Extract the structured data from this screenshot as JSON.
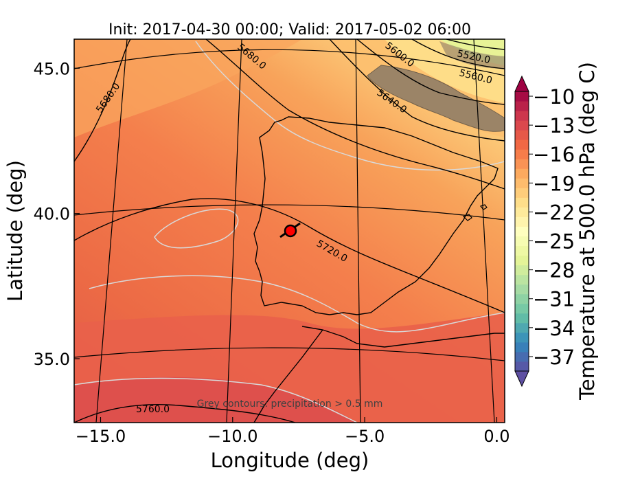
{
  "chart_data": {
    "type": "heatmap",
    "title": "Init: 2017-04-30 00:00; Valid: 2017-05-02 06:00",
    "xlabel": "Longitude (deg)",
    "ylabel": "Latitude (deg)",
    "xlim": [
      -16.0,
      0.3
    ],
    "ylim": [
      32.8,
      46.0
    ],
    "x_ticks": [
      -15.0,
      -10.0,
      -5.0,
      0.0
    ],
    "x_tick_labels": [
      "−15.0",
      "−10.0",
      "−5.0",
      "0.0"
    ],
    "y_ticks": [
      35.0,
      40.0,
      45.0
    ],
    "y_tick_labels": [
      "35.0",
      "40.0",
      "45.0"
    ],
    "colorbar": {
      "label": "Temperature at 500.0 hPa (deg C)",
      "tick_values": [
        -10,
        -13,
        -16,
        -19,
        -22,
        -25,
        -28,
        -31,
        -34,
        -37
      ],
      "tick_labels": [
        "−10",
        "−13",
        "−16",
        "−19",
        "−22",
        "−25",
        "−28",
        "−31",
        "−34",
        "−37"
      ],
      "range": [
        -38.5,
        -9.5
      ],
      "extend": "both",
      "colormap": "Spectral",
      "colors": [
        "#5e4fa2",
        "#3288bd",
        "#66c2a5",
        "#abdda4",
        "#e6f598",
        "#ffffbf",
        "#fee08b",
        "#fdae61",
        "#f46d43",
        "#d53e4f",
        "#9e0142"
      ]
    },
    "height_contours": {
      "color": "#000000",
      "labeled_values": [
        "5520.0",
        "5560.0",
        "5600.0",
        "5640.0",
        "5680.0",
        "5680.0",
        "5720.0",
        "5760.0"
      ]
    },
    "annotation": "Grey contours: precipitation > 0.5 mm",
    "marker": {
      "lon": -7.6,
      "lat": 39.3,
      "color": "#ff0000"
    }
  }
}
